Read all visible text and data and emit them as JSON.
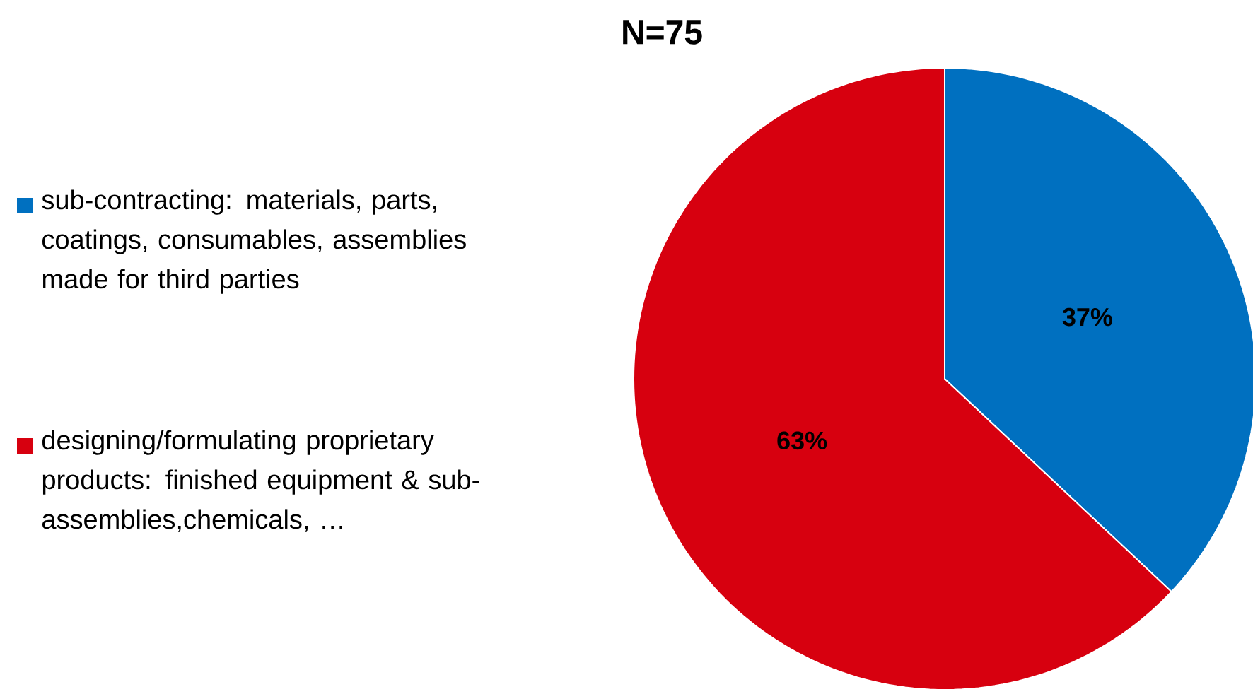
{
  "chart_data": {
    "type": "pie",
    "title": "N=75",
    "categories": [
      "sub-contracting: materials, parts, coatings, consumables, assemblies made for third parties",
      "designing/formulating proprietary products: finished equipment & sub-assemblies,chemicals, …"
    ],
    "values": [
      37,
      63
    ],
    "colors": [
      "#0070c0",
      "#d7000f"
    ],
    "value_labels": [
      "37%",
      "63%"
    ],
    "legend": "left"
  }
}
